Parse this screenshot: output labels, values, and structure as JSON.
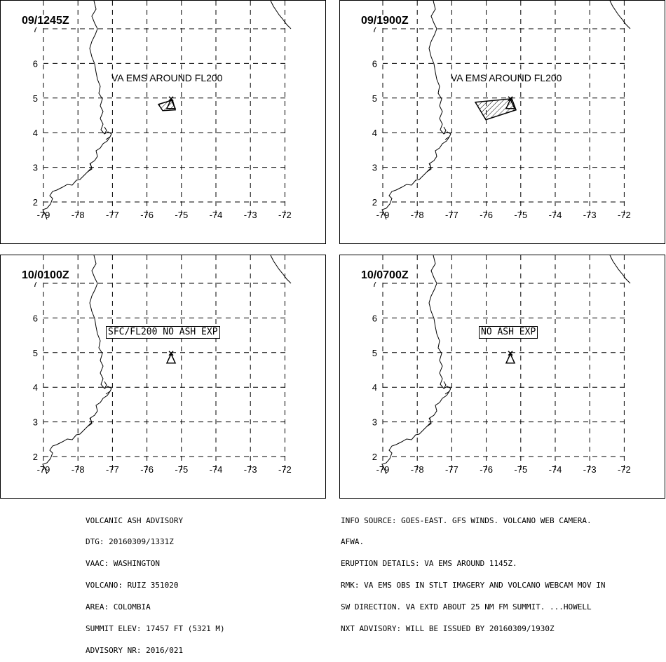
{
  "panels": [
    {
      "time": "09/1245Z",
      "label": "VA EMS AROUND FL200",
      "boxed": false,
      "ash": "small"
    },
    {
      "time": "09/1900Z",
      "label": "VA EMS AROUND FL200",
      "boxed": false,
      "ash": "large"
    },
    {
      "time": "10/0100Z",
      "label": "SFC/FL200 NO ASH EXP",
      "boxed": true,
      "ash": "none"
    },
    {
      "time": "10/0700Z",
      "label": "NO ASH EXP",
      "boxed": true,
      "ash": "none"
    }
  ],
  "map": {
    "lon_ticks": [
      "-79",
      "-78",
      "-77",
      "-76",
      "-75",
      "-74",
      "-73",
      "-72"
    ],
    "lat_ticks": [
      "2",
      "3",
      "4",
      "5",
      "6",
      "7"
    ],
    "volcano_lon": -75.3,
    "volcano_lat": 4.9
  },
  "advisory_lines": [
    "VOLCANIC ASH ADVISORY",
    "DTG: 20160309/1331Z",
    "VAAC: WASHINGTON",
    "VOLCANO: RUIZ 351020",
    "AREA: COLOMBIA",
    "SUMMIT ELEV: 17457 FT (5321 M)",
    "ADVISORY NR: 2016/021"
  ],
  "info_lines": [
    "INFO SOURCE: GOES-EAST. GFS WINDS. VOLCANO WEB CAMERA.",
    "AFWA.",
    "ERUPTION DETAILS: VA EMS AROUND 1145Z.",
    "RMK: VA EMS OBS IN STLT IMAGERY AND VOLCANO WEBCAM MOV IN",
    "SW DIRECTION. VA EXTD ABOUT 25 NM FM SUMMIT. ...HOWELL",
    "NXT ADVISORY: WILL BE ISSUED BY 20160309/1930Z"
  ]
}
